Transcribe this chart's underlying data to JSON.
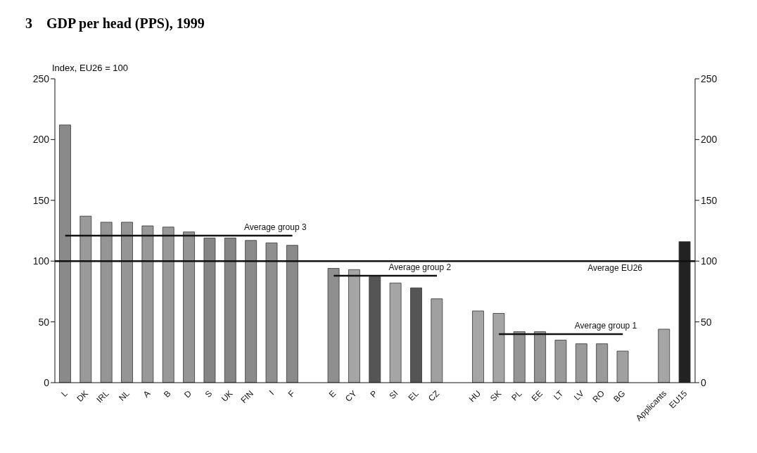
{
  "chart_data": {
    "type": "bar",
    "title": "3    GDP per head (PPS), 1999",
    "ylabel": "Index, EU26 = 100",
    "categories": [
      "L",
      "DK",
      "IRL",
      "NL",
      "A",
      "B",
      "D",
      "S",
      "UK",
      "FIN",
      "I",
      "F",
      null,
      "E",
      "CY",
      "P",
      "SI",
      "EL",
      "CZ",
      null,
      "HU",
      "SK",
      "PL",
      "EE",
      "LT",
      "LV",
      "RO",
      "BG",
      null,
      "Applicants",
      "EU15"
    ],
    "series": [
      {
        "values": [
          212,
          137,
          132,
          132,
          129,
          128,
          124,
          119,
          119,
          117,
          115,
          113,
          null,
          94,
          93,
          87,
          82,
          78,
          69,
          null,
          59,
          57,
          42,
          42,
          35,
          32,
          32,
          26,
          null,
          44,
          116
        ],
        "colors": [
          "#8a8a8a",
          "#9a9a9a",
          "#959595",
          "#959595",
          "#989898",
          "#989898",
          "#959595",
          "#858585",
          "#858585",
          "#8a8a8a",
          "#8f8f8f",
          "#8a8a8a",
          "#8a8a8a",
          "#8f8f8f",
          "#a5a5a5",
          "#555555",
          "#a5a5a5",
          "#555555",
          "#a0a0a0",
          "#a0a0a0",
          "#a5a5a5",
          "#a5a5a5",
          "#959595",
          "#959595",
          "#9a9a9a",
          "#9a9a9a",
          "#9a9a9a",
          "#a0a0a0",
          "#a0a0a0",
          "#a5a5a5",
          "#222222"
        ]
      },
      {
        "type": "line",
        "name": "Average group 3",
        "color": "#111111",
        "values": [
          121,
          121,
          121,
          121,
          121,
          121,
          121,
          121,
          121,
          121,
          121,
          121,
          null,
          null,
          null,
          null,
          null,
          null,
          null,
          null,
          null,
          null,
          null,
          null,
          null,
          null,
          null,
          null,
          null,
          null,
          null
        ]
      },
      {
        "type": "line",
        "name": "Average group 2",
        "color": "#111111",
        "values": [
          null,
          null,
          null,
          null,
          null,
          null,
          null,
          null,
          null,
          null,
          null,
          null,
          null,
          88,
          88,
          88,
          88,
          88,
          88,
          null,
          null,
          null,
          null,
          null,
          null,
          null,
          null,
          null,
          null,
          null,
          null
        ]
      },
      {
        "type": "line",
        "name": "Average group 1",
        "color": "#111111",
        "values": [
          null,
          null,
          null,
          null,
          null,
          null,
          null,
          null,
          null,
          null,
          null,
          null,
          null,
          null,
          null,
          null,
          null,
          null,
          null,
          null,
          null,
          40,
          40,
          40,
          40,
          40,
          40,
          40,
          null,
          null,
          null
        ]
      }
    ],
    "ref_lines": [
      {
        "axis": "y",
        "value": 100,
        "label": "Average EU26",
        "color": "#111111"
      }
    ],
    "ylim": [
      0,
      250
    ],
    "yticks": [
      0,
      50,
      100,
      150,
      200,
      250
    ],
    "y2lim": [
      0,
      250
    ],
    "y2ticks": [
      0,
      50,
      100,
      150,
      200,
      250
    ],
    "grid": false,
    "legend": false,
    "marker": "none"
  }
}
